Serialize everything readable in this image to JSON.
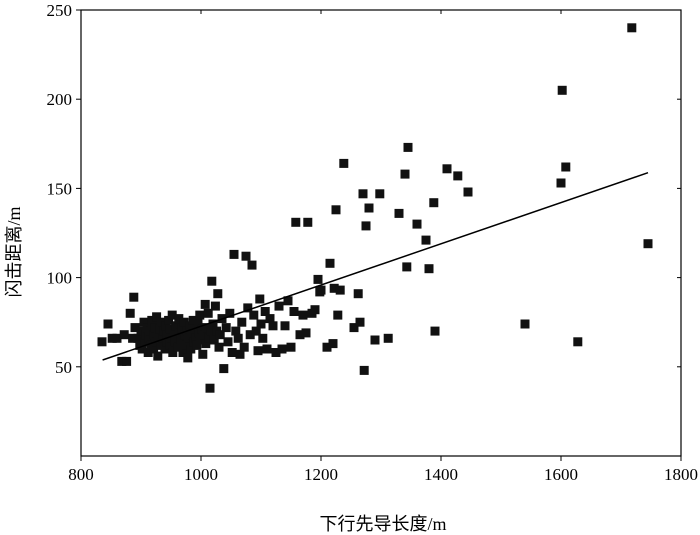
{
  "chart_data": {
    "type": "scatter",
    "xlabel": "下行先导长度/m",
    "ylabel": "闪击距离/m",
    "xlim": [
      800,
      1800
    ],
    "ylim": [
      0,
      250
    ],
    "xticks": [
      800,
      1000,
      1200,
      1400,
      1600,
      1800
    ],
    "yticks": [
      50,
      100,
      150,
      200,
      250
    ],
    "grid": false,
    "legend": "none",
    "colors": {
      "marker": "#111111",
      "line": "#000000",
      "axis": "#000000"
    },
    "fit_line": {
      "x": [
        836,
        1745
      ],
      "y": [
        53.8,
        158.8
      ]
    },
    "points": [
      [
        835,
        64
      ],
      [
        845,
        74
      ],
      [
        852,
        66
      ],
      [
        860,
        66
      ],
      [
        868,
        53
      ],
      [
        872,
        68
      ],
      [
        876,
        53
      ],
      [
        882,
        80
      ],
      [
        886,
        66
      ],
      [
        888,
        89
      ],
      [
        890,
        72
      ],
      [
        895,
        66
      ],
      [
        898,
        62
      ],
      [
        900,
        70
      ],
      [
        902,
        60
      ],
      [
        905,
        75
      ],
      [
        907,
        64
      ],
      [
        908,
        68
      ],
      [
        910,
        72
      ],
      [
        912,
        58
      ],
      [
        913,
        66
      ],
      [
        915,
        70
      ],
      [
        917,
        62
      ],
      [
        918,
        76
      ],
      [
        920,
        74
      ],
      [
        921,
        60
      ],
      [
        922,
        68
      ],
      [
        924,
        72
      ],
      [
        925,
        64
      ],
      [
        926,
        78
      ],
      [
        928,
        56
      ],
      [
        930,
        67
      ],
      [
        931,
        71
      ],
      [
        933,
        62
      ],
      [
        935,
        75
      ],
      [
        936,
        66
      ],
      [
        938,
        70
      ],
      [
        940,
        60
      ],
      [
        941,
        73
      ],
      [
        943,
        64
      ],
      [
        944,
        68
      ],
      [
        946,
        76
      ],
      [
        948,
        62
      ],
      [
        949,
        71
      ],
      [
        950,
        66
      ],
      [
        952,
        79
      ],
      [
        953,
        58
      ],
      [
        955,
        70
      ],
      [
        957,
        64
      ],
      [
        958,
        73
      ],
      [
        960,
        67
      ],
      [
        962,
        61
      ],
      [
        963,
        77
      ],
      [
        965,
        69
      ],
      [
        967,
        65
      ],
      [
        968,
        72
      ],
      [
        970,
        58
      ],
      [
        972,
        75
      ],
      [
        973,
        68
      ],
      [
        975,
        62
      ],
      [
        977,
        70
      ],
      [
        978,
        55
      ],
      [
        980,
        66
      ],
      [
        982,
        73
      ],
      [
        983,
        60
      ],
      [
        985,
        68
      ],
      [
        987,
        76
      ],
      [
        988,
        64
      ],
      [
        990,
        71
      ],
      [
        992,
        66
      ],
      [
        993,
        62
      ],
      [
        995,
        74
      ],
      [
        997,
        69
      ],
      [
        998,
        79
      ],
      [
        1000,
        65
      ],
      [
        1002,
        71
      ],
      [
        1003,
        57
      ],
      [
        1005,
        68
      ],
      [
        1007,
        85
      ],
      [
        1008,
        63
      ],
      [
        1010,
        72
      ],
      [
        1012,
        80
      ],
      [
        1013,
        66
      ],
      [
        1015,
        38
      ],
      [
        1017,
        70
      ],
      [
        1018,
        98
      ],
      [
        1020,
        74
      ],
      [
        1022,
        65
      ],
      [
        1024,
        84
      ],
      [
        1026,
        70
      ],
      [
        1028,
        91
      ],
      [
        1030,
        61
      ],
      [
        1032,
        68
      ],
      [
        1035,
        77
      ],
      [
        1038,
        49
      ],
      [
        1042,
        72
      ],
      [
        1045,
        64
      ],
      [
        1048,
        80
      ],
      [
        1052,
        58
      ],
      [
        1055,
        113
      ],
      [
        1058,
        70
      ],
      [
        1062,
        66
      ],
      [
        1065,
        57
      ],
      [
        1068,
        75
      ],
      [
        1072,
        61
      ],
      [
        1075,
        112
      ],
      [
        1078,
        83
      ],
      [
        1082,
        68
      ],
      [
        1085,
        107
      ],
      [
        1088,
        79
      ],
      [
        1092,
        70
      ],
      [
        1095,
        59
      ],
      [
        1098,
        88
      ],
      [
        1100,
        74
      ],
      [
        1103,
        66
      ],
      [
        1107,
        81
      ],
      [
        1110,
        60
      ],
      [
        1115,
        77
      ],
      [
        1120,
        73
      ],
      [
        1125,
        58
      ],
      [
        1130,
        84
      ],
      [
        1135,
        60
      ],
      [
        1140,
        73
      ],
      [
        1145,
        87
      ],
      [
        1150,
        61
      ],
      [
        1155,
        81
      ],
      [
        1158,
        131
      ],
      [
        1165,
        68
      ],
      [
        1170,
        79
      ],
      [
        1175,
        69
      ],
      [
        1178,
        131
      ],
      [
        1185,
        80
      ],
      [
        1190,
        82
      ],
      [
        1195,
        99
      ],
      [
        1198,
        92
      ],
      [
        1200,
        93
      ],
      [
        1210,
        61
      ],
      [
        1215,
        108
      ],
      [
        1220,
        63
      ],
      [
        1222,
        94
      ],
      [
        1225,
        138
      ],
      [
        1228,
        79
      ],
      [
        1232,
        93
      ],
      [
        1238,
        164
      ],
      [
        1255,
        72
      ],
      [
        1262,
        91
      ],
      [
        1265,
        75
      ],
      [
        1270,
        147
      ],
      [
        1272,
        48
      ],
      [
        1275,
        129
      ],
      [
        1280,
        139
      ],
      [
        1290,
        65
      ],
      [
        1298,
        147
      ],
      [
        1312,
        66
      ],
      [
        1330,
        136
      ],
      [
        1340,
        158
      ],
      [
        1343,
        106
      ],
      [
        1345,
        173
      ],
      [
        1360,
        130
      ],
      [
        1375,
        121
      ],
      [
        1380,
        105
      ],
      [
        1388,
        142
      ],
      [
        1390,
        70
      ],
      [
        1410,
        161
      ],
      [
        1428,
        157
      ],
      [
        1445,
        148
      ],
      [
        1540,
        74
      ],
      [
        1600,
        153
      ],
      [
        1602,
        205
      ],
      [
        1608,
        162
      ],
      [
        1628,
        64
      ],
      [
        1718,
        240
      ],
      [
        1745,
        119
      ]
    ]
  }
}
